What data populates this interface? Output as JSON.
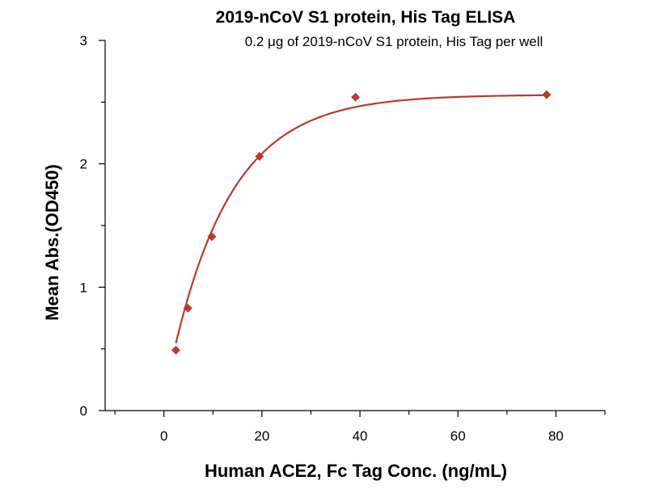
{
  "chart_data": {
    "type": "scatter",
    "title": "2019-nCoV S1 protein, His Tag ELISA",
    "subtitle": "0.2 μg of 2019-nCoV S1 protein, His Tag per well",
    "xlabel": "Human ACE2, Fc Tag Conc. (ng/mL)",
    "ylabel": "Mean Abs.(OD450)",
    "xlim": [
      -12,
      90
    ],
    "ylim": [
      0,
      3
    ],
    "x_major_ticks": [
      0,
      20,
      40,
      60,
      80
    ],
    "x_minor_ticks": [
      -10,
      10,
      30,
      50,
      70,
      90
    ],
    "x_tick_labels": [
      "0",
      "20",
      "40",
      "60",
      "80"
    ],
    "y_major_ticks": [
      0,
      1,
      2,
      3
    ],
    "y_minor_ticks": [
      0.5,
      1.5,
      2.5
    ],
    "y_tick_labels": [
      "0",
      "1",
      "2",
      "3"
    ],
    "grid": false,
    "legend": "none",
    "marker": "diamond",
    "series": [
      {
        "points": [
          {
            "x": 2.44,
            "y": 0.49
          },
          {
            "x": 4.88,
            "y": 0.83
          },
          {
            "x": 9.77,
            "y": 1.41
          },
          {
            "x": 19.5,
            "y": 2.06
          },
          {
            "x": 39.1,
            "y": 2.54
          },
          {
            "x": 78.1,
            "y": 2.56
          }
        ],
        "color": "#B83A30"
      }
    ],
    "fit_curve": {
      "model": "exponential_rise",
      "bottom": 0.1,
      "top": 2.56,
      "rate": 0.082,
      "x_range": [
        2.44,
        78.1
      ],
      "color": "#B83A30"
    }
  }
}
